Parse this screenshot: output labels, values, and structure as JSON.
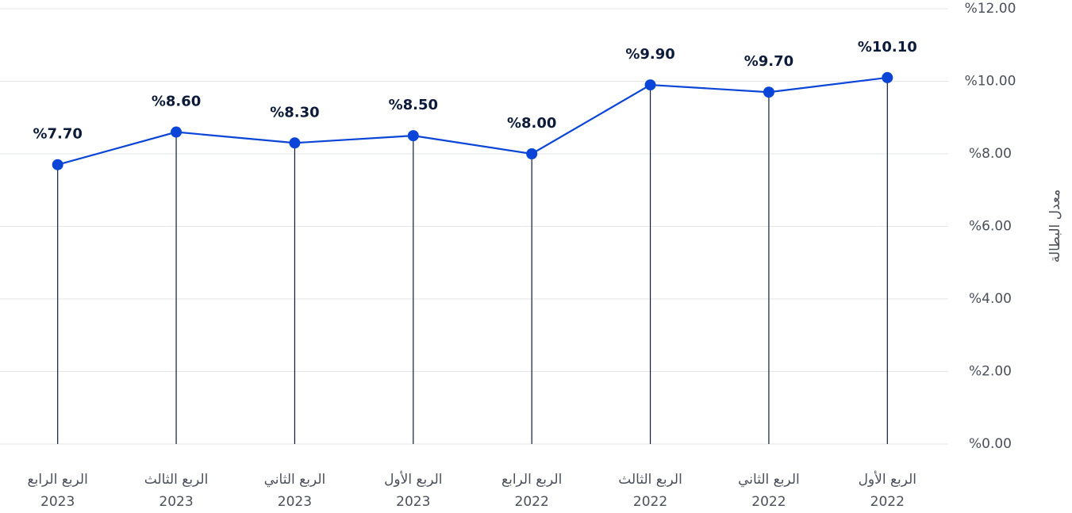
{
  "chart_data": {
    "type": "line",
    "y_label": "معدل البطالة",
    "categories": [
      [
        "الربع الأول",
        "2022"
      ],
      [
        "الربع الثاني",
        "2022"
      ],
      [
        "الربع الثالث",
        "2022"
      ],
      [
        "الربع الرابع",
        "2022"
      ],
      [
        "الربع الأول",
        "2023"
      ],
      [
        "الربع الثاني",
        "2023"
      ],
      [
        "الربع الثالث",
        "2023"
      ],
      [
        "الربع الرابع",
        "2023"
      ]
    ],
    "values": [
      10.1,
      9.7,
      9.9,
      8.0,
      8.5,
      8.3,
      8.6,
      7.7
    ],
    "value_labels": [
      "%10.10",
      "%9.70",
      "%9.90",
      "%8.00",
      "%8.50",
      "%8.30",
      "%8.60",
      "%7.70"
    ],
    "color": "#0a45d8",
    "x_reversed": true,
    "ylim": [
      0,
      12
    ],
    "yticks": [
      {
        "value": 0,
        "label": "%0.00"
      },
      {
        "value": 2,
        "label": "%2.00"
      },
      {
        "value": 4,
        "label": "%4.00"
      },
      {
        "value": 6,
        "label": "%6.00"
      },
      {
        "value": 8,
        "label": "%8.00"
      },
      {
        "value": 10,
        "label": "%10.00"
      },
      {
        "value": 12,
        "label": "%12.00"
      }
    ],
    "grid": true
  }
}
